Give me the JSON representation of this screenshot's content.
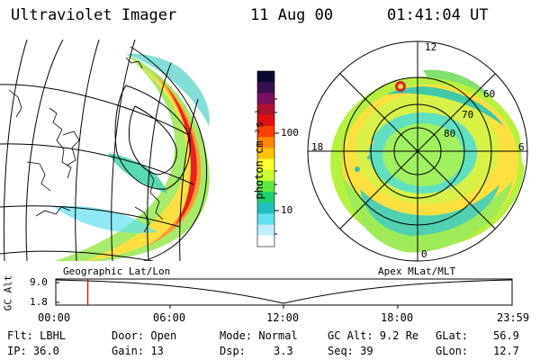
{
  "header": {
    "instrument": "Ultraviolet Imager",
    "date": "11 Aug 00",
    "time": "01:41:04 UT"
  },
  "colorbar": {
    "label": "photon cm⁻²s⁻¹",
    "ticks": [
      "100",
      "10"
    ],
    "colors": [
      "#0a0a30",
      "#3a1050",
      "#7a1060",
      "#b01030",
      "#e01010",
      "#ff4000",
      "#ff8800",
      "#ffc000",
      "#ffff30",
      "#c8ff30",
      "#60e840",
      "#20d070",
      "#20c0c0",
      "#60e0f0",
      "#c0f0ff",
      "#ffffff"
    ]
  },
  "polar": {
    "lat_labels": [
      "60",
      "70",
      "80"
    ],
    "mlt_labels": {
      "top": "12",
      "left": "18",
      "right": "6",
      "bottom": "0"
    }
  },
  "labels": {
    "geo": "Geographic Lat/Lon",
    "apex": "Apex MLat/MLT"
  },
  "altplot": {
    "ylabel": "GC Alt",
    "yticks": [
      "9.0",
      "1.8"
    ],
    "xticks": [
      "00:00",
      "06:00",
      "12:00",
      "18:00",
      "23:59"
    ],
    "marker_time_hours": 1.685
  },
  "status": {
    "filter": "Flt: LBHL",
    "ip": "IP: 36.0",
    "door": "Door: Open",
    "gain": "Gain: 13",
    "mode": "Mode: Normal",
    "dsp_label": "Dsp:",
    "dsp_value": "3.3",
    "gc_alt": "GC Alt: 9.2 Re",
    "seq": "Seq: 39",
    "glat_label": "GLat:",
    "glat_value": "56.9",
    "glon_label": "GLon:",
    "glon_value": "12.7"
  }
}
